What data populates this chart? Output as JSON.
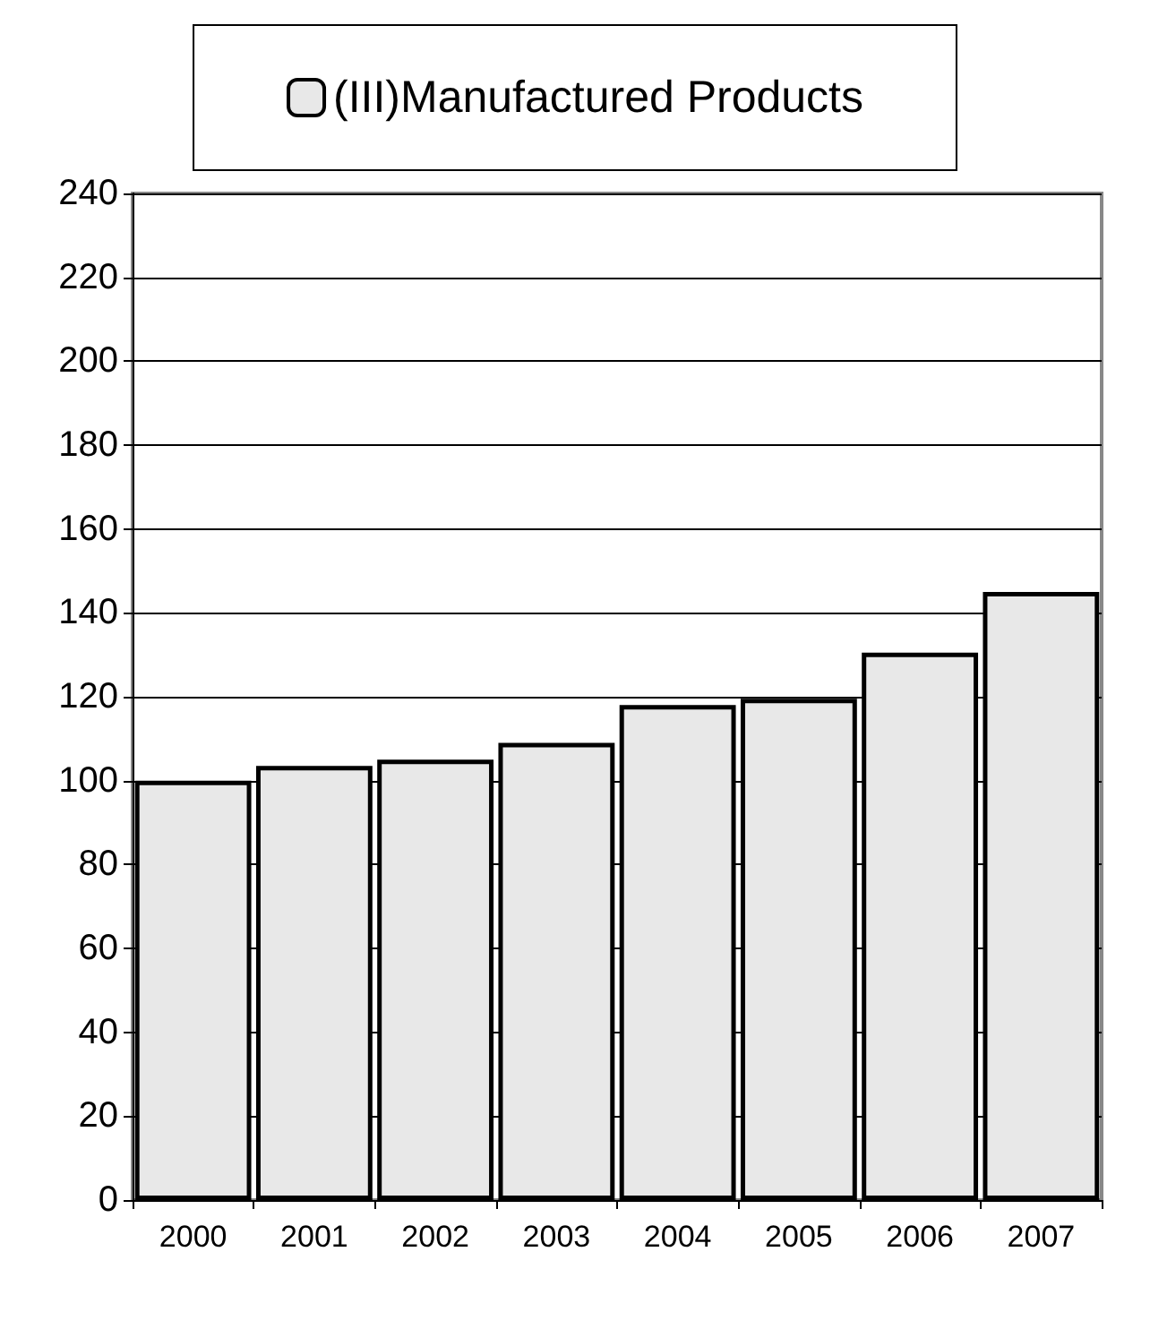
{
  "chart_data": {
    "type": "bar",
    "categories": [
      "2000",
      "2001",
      "2002",
      "2003",
      "2004",
      "2005",
      "2006",
      "2007"
    ],
    "series": [
      {
        "name": "(III)Manufactured Products",
        "color": "#e8e8e8",
        "values": [
          100,
          103.5,
          105,
          109,
          118,
          119.5,
          130.5,
          145
        ]
      }
    ],
    "ylim": [
      0,
      240
    ],
    "yticks": [
      0,
      20,
      40,
      60,
      80,
      100,
      120,
      140,
      160,
      180,
      200,
      220,
      240
    ],
    "grid": "y",
    "legend": "top"
  }
}
